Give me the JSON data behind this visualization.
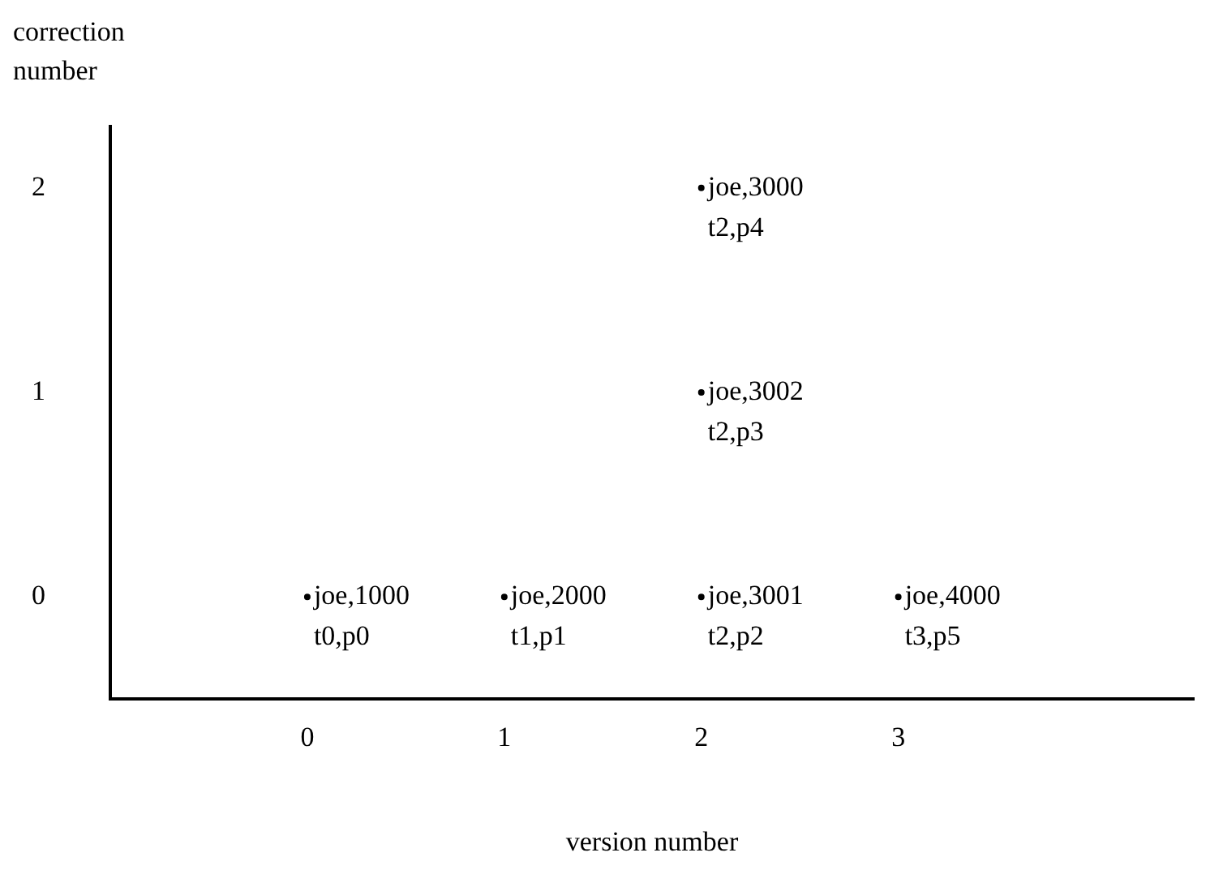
{
  "chart_data": {
    "type": "scatter",
    "xlabel": "version number",
    "ylabel": "correction number",
    "x": [
      0,
      1,
      2,
      3,
      2,
      2
    ],
    "values": [
      0,
      0,
      0,
      0,
      1,
      2
    ],
    "value_labels": [
      "joe,1000\nt0,p0",
      "joe,2000\nt1,p1",
      "joe,3001\nt2,p2",
      "joe,4000\nt3,p5",
      "joe,3002\nt2,p3",
      "joe,3000\nt2,p4"
    ],
    "xlim": [
      -1,
      4.5
    ],
    "ylim": [
      -0.5,
      2.3
    ],
    "xticks": [
      0,
      1,
      2,
      3
    ],
    "yticks": [
      0,
      1,
      2
    ],
    "grid": false,
    "legend": false,
    "color": "#000000"
  }
}
